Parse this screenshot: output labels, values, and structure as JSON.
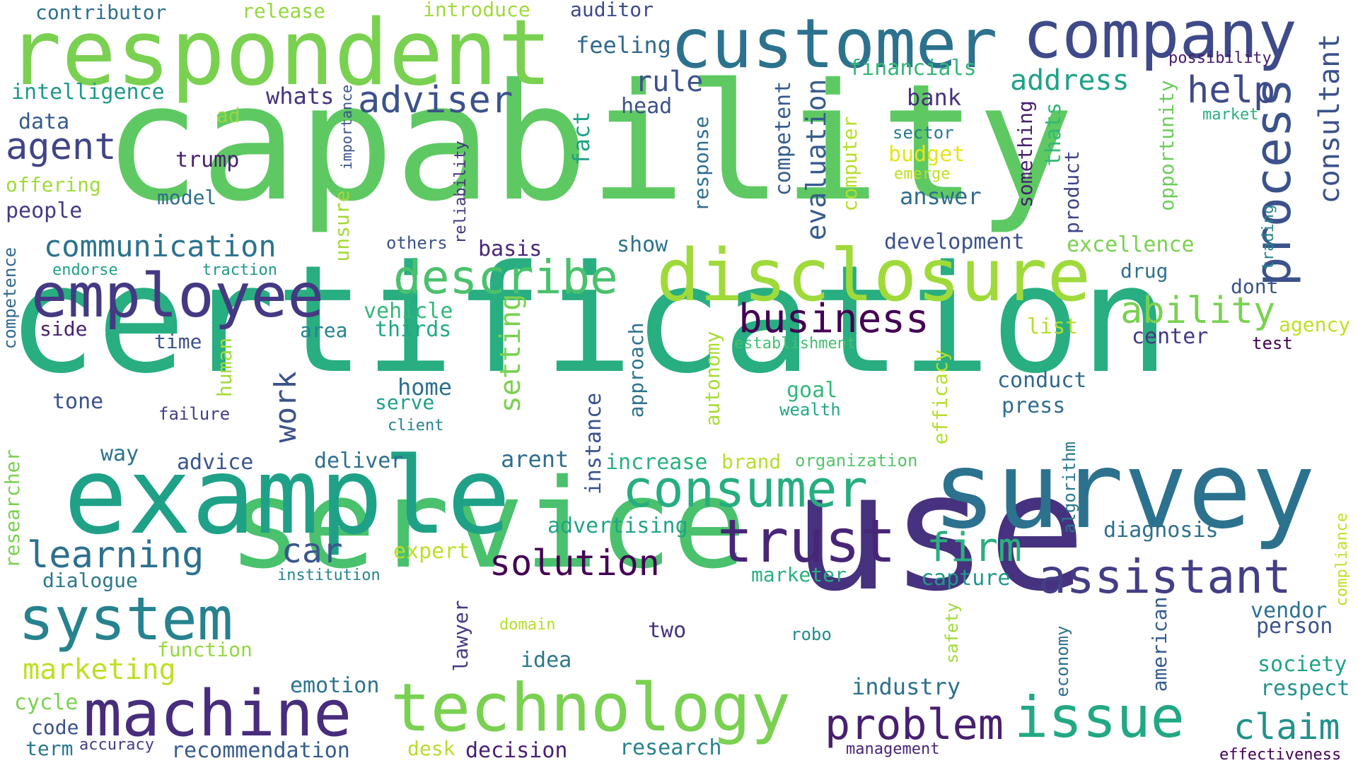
{
  "cloud": {
    "palette": {
      "dark_purple": "#440154",
      "indigo": "#46327e",
      "blue_purple": "#3b528b",
      "steel_blue": "#365c8d",
      "teal_blue": "#2c728e",
      "teal": "#21918c",
      "sea_green": "#1fa187",
      "green": "#35b779",
      "light_green": "#5ec962",
      "lime": "#9fda3a",
      "yellow_green": "#bddf26",
      "yellow": "#e5e419"
    },
    "words": [
      {
        "text": "capability",
        "color": "#5ec962"
      },
      {
        "text": "certification",
        "color": "#28ae80"
      },
      {
        "text": "service",
        "color": "#4ac16d"
      },
      {
        "text": "use",
        "color": "#46327e"
      },
      {
        "text": "survey",
        "color": "#2c728e"
      },
      {
        "text": "example",
        "color": "#1fa187"
      },
      {
        "text": "respondent",
        "color": "#7ad151"
      },
      {
        "text": "customer",
        "color": "#2c728e"
      },
      {
        "text": "company",
        "color": "#3e4a89"
      },
      {
        "text": "disclosure",
        "color": "#9fda3a"
      },
      {
        "text": "technology",
        "color": "#7ad151"
      },
      {
        "text": "employee",
        "color": "#443983"
      },
      {
        "text": "machine",
        "color": "#472d7b"
      },
      {
        "text": "system",
        "color": "#26828e"
      },
      {
        "text": "trust",
        "color": "#482677"
      },
      {
        "text": "assistant",
        "color": "#433e85"
      },
      {
        "text": "issue",
        "color": "#22a884"
      },
      {
        "text": "consumer",
        "color": "#27ad81"
      },
      {
        "text": "describe",
        "color": "#4ac16d"
      },
      {
        "text": "process",
        "color": "#3b528b"
      },
      {
        "text": "business",
        "color": "#440154"
      },
      {
        "text": "problem",
        "color": "#481f70"
      },
      {
        "text": "learning",
        "color": "#2d708e"
      },
      {
        "text": "claim",
        "color": "#21918c"
      },
      {
        "text": "firm",
        "color": "#2ab07f"
      },
      {
        "text": "ability",
        "color": "#7ad151"
      },
      {
        "text": "solution",
        "color": "#440154"
      },
      {
        "text": "adviser",
        "color": "#3b528b"
      },
      {
        "text": "agent",
        "color": "#414487"
      },
      {
        "text": "help",
        "color": "#3e4a89"
      },
      {
        "text": "consultant",
        "color": "#3b528b"
      },
      {
        "text": "communication",
        "color": "#2c728e"
      },
      {
        "text": "setting",
        "color": "#7ad151"
      },
      {
        "text": "work",
        "color": "#3b528b"
      },
      {
        "text": "car",
        "color": "#39568c"
      },
      {
        "text": "rule",
        "color": "#3b528b"
      },
      {
        "text": "address",
        "color": "#1fa187"
      },
      {
        "text": "evaluation",
        "color": "#365c8d"
      },
      {
        "text": "marketing",
        "color": "#bddf26"
      },
      {
        "text": "contributor",
        "color": "#2d708e"
      },
      {
        "text": "release",
        "color": "#95d840"
      },
      {
        "text": "introduce",
        "color": "#9fda3a"
      },
      {
        "text": "auditor",
        "color": "#3e4a89"
      },
      {
        "text": "feeling",
        "color": "#31688e"
      },
      {
        "text": "financials",
        "color": "#35b779"
      },
      {
        "text": "possibility",
        "color": "#481a6c"
      },
      {
        "text": "intelligence",
        "color": "#1f988b"
      },
      {
        "text": "whats",
        "color": "#46327e"
      },
      {
        "text": "head",
        "color": "#3b528b"
      },
      {
        "text": "bank",
        "color": "#46327e"
      },
      {
        "text": "market",
        "color": "#29af7f"
      },
      {
        "text": "data",
        "color": "#365c8d"
      },
      {
        "text": "ad",
        "color": "#95d840"
      },
      {
        "text": "fact",
        "color": "#1fa187"
      },
      {
        "text": "competent",
        "color": "#365c8d"
      },
      {
        "text": "computer",
        "color": "#b5de2b"
      },
      {
        "text": "sector",
        "color": "#2a788e"
      },
      {
        "text": "budget",
        "color": "#e5e419"
      },
      {
        "text": "emerge",
        "color": "#bddf26"
      },
      {
        "text": "something",
        "color": "#481f70"
      },
      {
        "text": "thats",
        "color": "#35b779"
      },
      {
        "text": "opportunity",
        "color": "#6ccd5a"
      },
      {
        "text": "trump",
        "color": "#481f70"
      },
      {
        "text": "importance",
        "color": "#3b528b"
      },
      {
        "text": "reliability",
        "color": "#46337f"
      },
      {
        "text": "response",
        "color": "#2e6e8e"
      },
      {
        "text": "answer",
        "color": "#2f6c8e"
      },
      {
        "text": "product",
        "color": "#414487"
      },
      {
        "text": "offering",
        "color": "#9fda3a"
      },
      {
        "text": "model",
        "color": "#2e6e8e"
      },
      {
        "text": "people",
        "color": "#443983"
      },
      {
        "text": "unsure",
        "color": "#a2da37"
      },
      {
        "text": "others",
        "color": "#3b528b"
      },
      {
        "text": "basis",
        "color": "#482878"
      },
      {
        "text": "show",
        "color": "#2c728e"
      },
      {
        "text": "development",
        "color": "#3b528b"
      },
      {
        "text": "excellence",
        "color": "#7ad151"
      },
      {
        "text": "trading",
        "color": "#26828e"
      },
      {
        "text": "endorse",
        "color": "#1fa187"
      },
      {
        "text": "traction",
        "color": "#1f988b"
      },
      {
        "text": "drug",
        "color": "#2d708e"
      },
      {
        "text": "dont",
        "color": "#3b528b"
      },
      {
        "text": "competence",
        "color": "#31688e"
      },
      {
        "text": "vehicle",
        "color": "#35b779"
      },
      {
        "text": "side",
        "color": "#481f70"
      },
      {
        "text": "area",
        "color": "#26828e"
      },
      {
        "text": "thirds",
        "color": "#22a884"
      },
      {
        "text": "list",
        "color": "#b5de2b"
      },
      {
        "text": "center",
        "color": "#443983"
      },
      {
        "text": "agency",
        "color": "#bddf26"
      },
      {
        "text": "time",
        "color": "#3b528b"
      },
      {
        "text": "autonomy",
        "color": "#a8db34"
      },
      {
        "text": "establishment",
        "color": "#44bf70"
      },
      {
        "text": "test",
        "color": "#440154"
      },
      {
        "text": "approach",
        "color": "#2c728e"
      },
      {
        "text": "human",
        "color": "#a2da37"
      },
      {
        "text": "efficacy",
        "color": "#b5de2b"
      },
      {
        "text": "home",
        "color": "#2d708e"
      },
      {
        "text": "conduct",
        "color": "#31688e"
      },
      {
        "text": "goal",
        "color": "#35b779"
      },
      {
        "text": "tone",
        "color": "#3b528b"
      },
      {
        "text": "serve",
        "color": "#1f9e89"
      },
      {
        "text": "press",
        "color": "#2e6e8e"
      },
      {
        "text": "failure",
        "color": "#433e85"
      },
      {
        "text": "wealth",
        "color": "#22a884"
      },
      {
        "text": "client",
        "color": "#26828e"
      },
      {
        "text": "way",
        "color": "#2c728e"
      },
      {
        "text": "instance",
        "color": "#3b528b"
      },
      {
        "text": "algorithm",
        "color": "#2a788e"
      },
      {
        "text": "arent",
        "color": "#2e6e8e"
      },
      {
        "text": "advice",
        "color": "#39568c"
      },
      {
        "text": "deliver",
        "color": "#2e6e8e"
      },
      {
        "text": "increase",
        "color": "#2ab07f"
      },
      {
        "text": "brand",
        "color": "#b5de2b"
      },
      {
        "text": "organization",
        "color": "#54c568"
      },
      {
        "text": "researcher",
        "color": "#7ad151"
      },
      {
        "text": "advertising",
        "color": "#20a486"
      },
      {
        "text": "diagnosis",
        "color": "#2d708e"
      },
      {
        "text": "compliance",
        "color": "#bddf26"
      },
      {
        "text": "expert",
        "color": "#bddf26"
      },
      {
        "text": "dialogue",
        "color": "#2a788e"
      },
      {
        "text": "institution",
        "color": "#25858e"
      },
      {
        "text": "marketer",
        "color": "#29af7f"
      },
      {
        "text": "capture",
        "color": "#1f988b"
      },
      {
        "text": "vendor",
        "color": "#2c728e"
      },
      {
        "text": "person",
        "color": "#3b528b"
      },
      {
        "text": "domain",
        "color": "#b5de2b"
      },
      {
        "text": "function",
        "color": "#95d840"
      },
      {
        "text": "lawyer",
        "color": "#443983"
      },
      {
        "text": "two",
        "color": "#46327e"
      },
      {
        "text": "robo",
        "color": "#23898e"
      },
      {
        "text": "safety",
        "color": "#9fda3a"
      },
      {
        "text": "american",
        "color": "#365c8d"
      },
      {
        "text": "economy",
        "color": "#2d708e"
      },
      {
        "text": "society",
        "color": "#20a486"
      },
      {
        "text": "respect",
        "color": "#21918c"
      },
      {
        "text": "idea",
        "color": "#2a788e"
      },
      {
        "text": "emotion",
        "color": "#2c728e"
      },
      {
        "text": "industry",
        "color": "#2d708e"
      },
      {
        "text": "cycle",
        "color": "#7ad151"
      },
      {
        "text": "code",
        "color": "#3b528b"
      },
      {
        "text": "term",
        "color": "#2a788e"
      },
      {
        "text": "accuracy",
        "color": "#433e85"
      },
      {
        "text": "recommendation",
        "color": "#365c8d"
      },
      {
        "text": "desk",
        "color": "#b5de2b"
      },
      {
        "text": "decision",
        "color": "#481f70"
      },
      {
        "text": "research",
        "color": "#26828e"
      },
      {
        "text": "management",
        "color": "#482576"
      },
      {
        "text": "effectiveness",
        "color": "#440154"
      }
    ]
  }
}
